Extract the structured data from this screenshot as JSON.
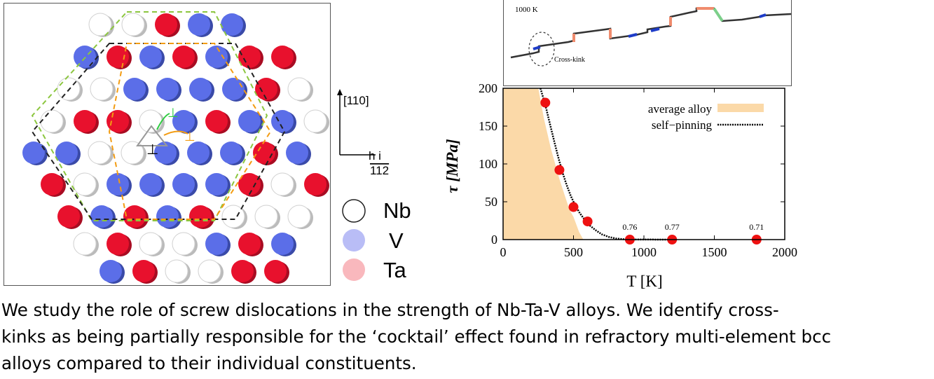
{
  "atoms_panel": {
    "elements": [
      {
        "symbol": "Nb",
        "color": "#ffffff"
      },
      {
        "symbol": "V",
        "color": "#5b6ee8"
      },
      {
        "symbol": "Ta",
        "color": "#e8112d"
      }
    ],
    "dislocation_symbol": "⊥"
  },
  "axes_indicator": {
    "up_label": "[110]",
    "right_label_top": "h i",
    "right_label_bottom": "112"
  },
  "legend": {
    "items": [
      {
        "label": "Nb",
        "color": "#ffffff"
      },
      {
        "label": "V",
        "color": "#b9bdf6"
      },
      {
        "label": "Ta",
        "color": "#f9b8bd"
      }
    ]
  },
  "md_panel": {
    "temperature_label": "1000 K",
    "annotation": "Cross-kink"
  },
  "chart_data": {
    "type": "scatter",
    "xlabel": "T [K]",
    "ylabel": "τ [MPa]",
    "xlim": [
      0,
      2000
    ],
    "ylim": [
      0,
      200
    ],
    "x_ticks": [
      "0",
      "500",
      "1000",
      "1500",
      "2000"
    ],
    "y_ticks": [
      "0",
      "50",
      "100",
      "150",
      "200"
    ],
    "legend_position": "top-right",
    "series": [
      {
        "name": "average alloy",
        "kind": "area",
        "color": "#fbd9a8",
        "boundary": [
          [
            0,
            200
          ],
          [
            250,
            200
          ],
          [
            290,
            160
          ],
          [
            340,
            120
          ],
          [
            400,
            80
          ],
          [
            470,
            40
          ],
          [
            500,
            30
          ],
          [
            540,
            10
          ],
          [
            570,
            0
          ],
          [
            0,
            0
          ]
        ]
      },
      {
        "name": "self−pinning",
        "kind": "dotted-line",
        "color": "#000000",
        "x": [
          265,
          300,
          330,
          360,
          390,
          420,
          450,
          480,
          510,
          545,
          580,
          620,
          660,
          700,
          750,
          800,
          850,
          900,
          1000,
          1200
        ],
        "y": [
          200,
          178,
          155,
          132,
          110,
          90,
          73,
          58,
          46,
          35,
          26,
          18,
          12,
          7,
          3.5,
          1.5,
          0.6,
          0.2,
          0.05,
          0
        ]
      },
      {
        "kind": "points",
        "color": "#ee1111",
        "x": [
          300,
          400,
          500,
          600,
          900,
          1200,
          1800
        ],
        "y": [
          181,
          92,
          43,
          24,
          0,
          0,
          0
        ]
      }
    ],
    "annotations": [
      {
        "text": "0.76",
        "x": 900
      },
      {
        "text": "0.77",
        "x": 1200
      },
      {
        "text": "0.71",
        "x": 1800
      }
    ]
  },
  "caption": {
    "lines": [
      "We study the role of screw dislocations in the strength of Nb-Ta-V alloys. We identify cross-",
      "kinks as being partially responsible for the ‘cocktail’ effect found in refractory multi-element bcc",
      "alloys compared to their individual constituents."
    ]
  }
}
